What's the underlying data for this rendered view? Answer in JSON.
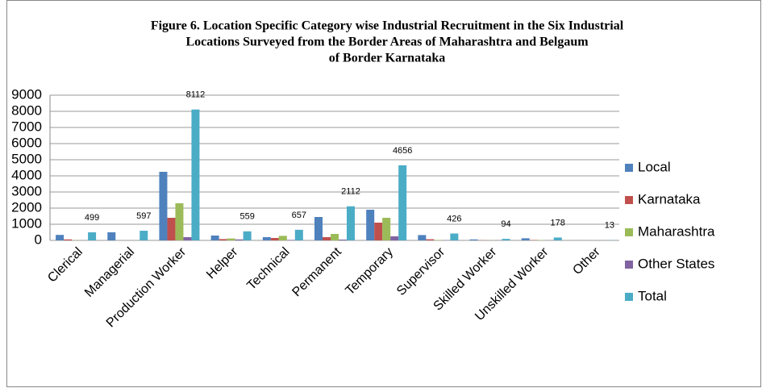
{
  "chart_data": {
    "type": "bar",
    "title": [
      "Figure 6. Location Specific Category wise Industrial Recruitment in the Six Industrial",
      "Locations Surveyed from the Border Areas of Maharashtra and Belgaum",
      "of Border Karnataka"
    ],
    "categories": [
      "Clerical",
      "Managerial",
      "Production Worker",
      "Helper",
      "Technical",
      "Permanent",
      "Temporary",
      "Supervisor",
      "Skilled Worker",
      "Unskilled Worker",
      "Other"
    ],
    "series": [
      {
        "name": "Local",
        "color": "#4f81bd",
        "values": [
          340,
          500,
          4250,
          300,
          200,
          1450,
          1900,
          330,
          60,
          130,
          5
        ]
      },
      {
        "name": "Karnataka",
        "color": "#c0504d",
        "values": [
          60,
          0,
          1400,
          80,
          150,
          200,
          1100,
          70,
          10,
          20,
          3
        ]
      },
      {
        "name": "Maharashtra",
        "color": "#9bbb59",
        "values": [
          10,
          0,
          2300,
          120,
          280,
          400,
          1400,
          20,
          10,
          20,
          3
        ]
      },
      {
        "name": "Other States",
        "color": "#8064a2",
        "values": [
          5,
          0,
          200,
          60,
          30,
          50,
          250,
          10,
          5,
          5,
          1
        ]
      },
      {
        "name": "Total",
        "color": "#4bacc6",
        "values": [
          499,
          597,
          8112,
          559,
          657,
          2112,
          4656,
          426,
          94,
          178,
          13
        ]
      }
    ],
    "data_labels_series": 4,
    "ylim": [
      0,
      9000
    ],
    "yticks": [
      0,
      1000,
      2000,
      3000,
      4000,
      5000,
      6000,
      7000,
      8000,
      9000
    ],
    "grid": true,
    "legend": "right"
  }
}
